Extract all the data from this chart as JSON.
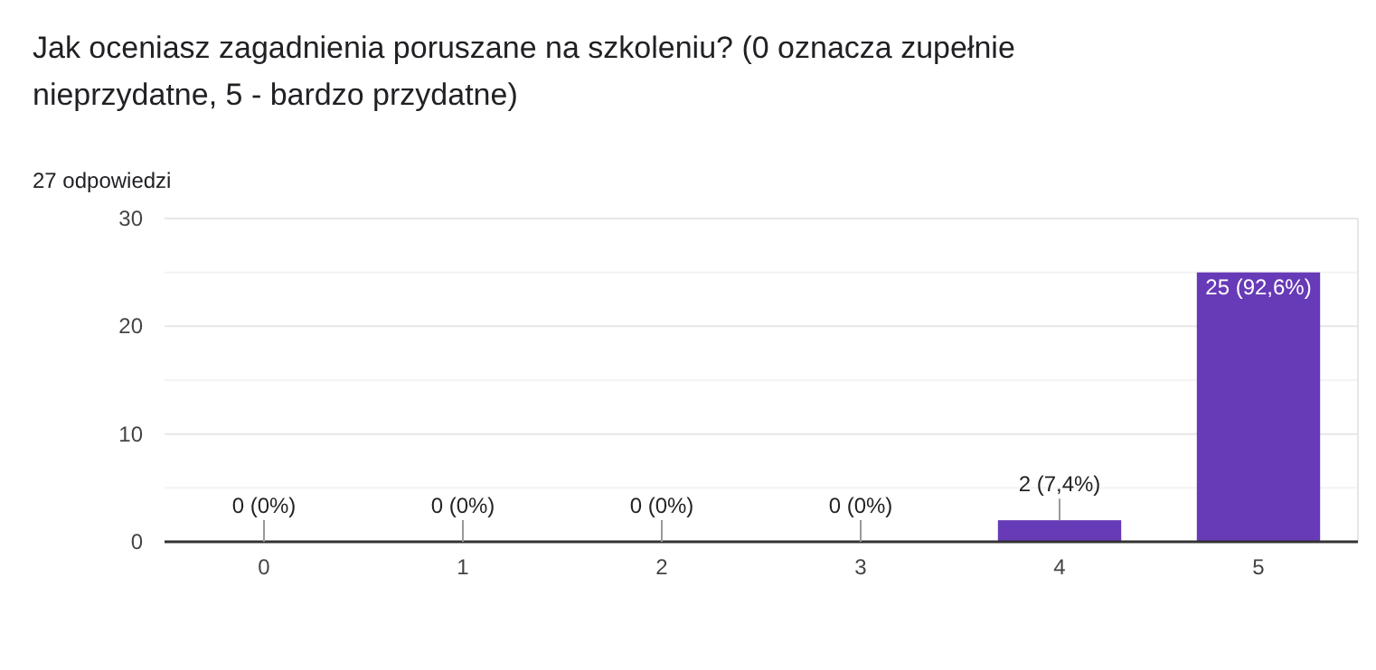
{
  "chart_data": {
    "type": "bar",
    "title": "Jak oceniasz zagadnienia poruszane na szkoleniu? (0 oznacza zupełnie nieprzydatne, 5 - bardzo przydatne)",
    "subtitle": "27 odpowiedzi",
    "categories": [
      "0",
      "1",
      "2",
      "3",
      "4",
      "5"
    ],
    "values": [
      0,
      0,
      0,
      0,
      2,
      25
    ],
    "value_labels": [
      "0 (0%)",
      "0 (0%)",
      "0 (0%)",
      "0 (0%)",
      "2 (7,4%)",
      "25 (92,6%)"
    ],
    "color": "#673ab7",
    "ylim": [
      0,
      30
    ],
    "yticks": [
      0,
      {
        "value": 5,
        "label": null
      },
      10,
      {
        "value": 15,
        "label": null
      },
      20,
      {
        "value": 25,
        "label": null
      },
      30
    ],
    "grid": "y"
  }
}
